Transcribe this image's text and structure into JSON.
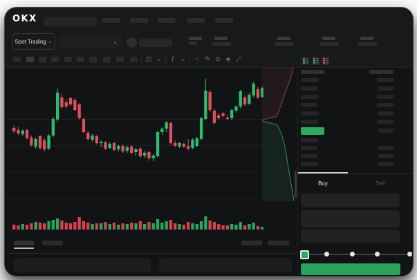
{
  "header": {
    "logo": "OKX",
    "nav_placeholder_count": 5
  },
  "trading_bar": {
    "market_selector": "Spot Trading",
    "chevron": "⌄",
    "stat_group_positions": [
      300,
      391,
      456,
      511
    ]
  },
  "chart_toolbar": {
    "timeframe_button_count": 10,
    "active_timeframe_index": 1,
    "icons": [
      {
        "name": "chart-type-icon",
        "glyph": "◫",
        "divider_before": true
      },
      {
        "name": "chevron-down-icon",
        "glyph": "⌄",
        "divider_before": false
      },
      {
        "name": "indicators-icon",
        "glyph": "ƒ",
        "divider_before": true
      },
      {
        "name": "chevron-down-icon",
        "glyph": "⌄",
        "divider_before": false
      },
      {
        "name": "line-tool-icon",
        "glyph": "~",
        "divider_before": true
      },
      {
        "name": "draw-tool-icon",
        "glyph": "✎",
        "divider_before": false
      },
      {
        "name": "screenshot-icon",
        "glyph": "⊙",
        "divider_before": false
      },
      {
        "name": "settings-icon",
        "glyph": "◈",
        "divider_before": false
      },
      {
        "name": "fullscreen-icon",
        "glyph": "⤢",
        "divider_before": false
      }
    ]
  },
  "order_book": {
    "view_icons": [
      {
        "name": "orderbook-combined-icon",
        "rows": [
          "red",
          "green",
          "green"
        ]
      },
      {
        "name": "orderbook-bids-icon",
        "rows": [
          "green",
          "green",
          "green"
        ]
      },
      {
        "name": "orderbook-asks-icon",
        "rows": [
          "red",
          "red",
          "red"
        ]
      }
    ],
    "header": {
      "left_w": 34,
      "right_w": 35
    },
    "asks": [
      {
        "l": 26,
        "r": 24
      },
      {
        "l": 25,
        "r": 23
      },
      {
        "l": 26,
        "r": 24
      },
      {
        "l": 24,
        "r": 24
      },
      {
        "l": 26,
        "r": 23
      },
      {
        "l": 25,
        "r": 24
      }
    ],
    "last_price": {
      "w": 34,
      "r": 23
    },
    "bids": [
      {
        "l": 25,
        "r": 0
      },
      {
        "l": 24,
        "r": 22
      },
      {
        "l": 24,
        "r": 22
      },
      {
        "l": 25,
        "r": 22
      }
    ]
  },
  "trade_form": {
    "tabs": {
      "buy": "Buy",
      "sell": "Sell"
    },
    "active_tab": "buy",
    "field_count": 3,
    "slider": {
      "stops": 5,
      "active_stop": 0
    },
    "buy_button_label": ""
  },
  "colors": {
    "candle_green": "#2ebd70",
    "candle_red": "#e0505c",
    "volume_green": "#2aa562",
    "volume_red": "#d4434f",
    "last_price_green": "#2fa860",
    "button_green": "#2ba25c",
    "depth_ask_line": "#8f454d",
    "depth_bid_line": "#3d8a72",
    "depth_ask_fill": "rgba(190,70,85,0.10)",
    "depth_bid_fill": "rgba(45,165,115,0.10)",
    "gridline": "#1d1f21"
  },
  "chart_data": {
    "type": "candlestick",
    "title": "",
    "xlabel": "",
    "ylabel": "",
    "note": "Skeleton trading UI: no numeric axis labels are rendered; OHLC values are in relative price units read from candle geometry (higher = higher price).",
    "gridlines_p": [
      157,
      119,
      81,
      43,
      5
    ],
    "p_range": [
      0,
      194
    ],
    "candles": [
      [
        106,
        110,
        99,
        101
      ],
      [
        103,
        107,
        95,
        98
      ],
      [
        97,
        104,
        94,
        102
      ],
      [
        103,
        105,
        89,
        91
      ],
      [
        92,
        95,
        79,
        81
      ],
      [
        79,
        92,
        76,
        90
      ],
      [
        94,
        96,
        74,
        77
      ],
      [
        88,
        91,
        72,
        75
      ],
      [
        76,
        97,
        74,
        95
      ],
      [
        95,
        122,
        93,
        119
      ],
      [
        118,
        164,
        115,
        157
      ],
      [
        150,
        155,
        133,
        136
      ],
      [
        143,
        148,
        134,
        137
      ],
      [
        149,
        151,
        138,
        140
      ],
      [
        146,
        149,
        130,
        132
      ],
      [
        140,
        142,
        118,
        120
      ],
      [
        119,
        121,
        98,
        100
      ],
      [
        99,
        102,
        88,
        90
      ],
      [
        89,
        97,
        86,
        95
      ],
      [
        94,
        96,
        82,
        84
      ],
      [
        84,
        88,
        78,
        86
      ],
      [
        85,
        87,
        74,
        76
      ],
      [
        77,
        85,
        75,
        83
      ],
      [
        84,
        86,
        72,
        74
      ],
      [
        75,
        82,
        72,
        80
      ],
      [
        80,
        82,
        70,
        72
      ],
      [
        73,
        80,
        70,
        78
      ],
      [
        79,
        81,
        68,
        70
      ],
      [
        71,
        77,
        66,
        75
      ],
      [
        76,
        78,
        63,
        65
      ],
      [
        66,
        73,
        62,
        70
      ],
      [
        71,
        73,
        58,
        62
      ],
      [
        62,
        68,
        58,
        66
      ],
      [
        65,
        102,
        63,
        100
      ],
      [
        100,
        107,
        96,
        105
      ],
      [
        105,
        116,
        100,
        114
      ],
      [
        113,
        115,
        82,
        84
      ],
      [
        84,
        88,
        78,
        80
      ],
      [
        79,
        86,
        77,
        84
      ],
      [
        83,
        85,
        77,
        79
      ],
      [
        80,
        90,
        74,
        76
      ],
      [
        77,
        91,
        75,
        89
      ],
      [
        80,
        93,
        78,
        91
      ],
      [
        90,
        122,
        88,
        120
      ],
      [
        119,
        177,
        117,
        160
      ],
      [
        158,
        161,
        129,
        132
      ],
      [
        131,
        134,
        111,
        113
      ],
      [
        124,
        127,
        118,
        120
      ],
      [
        127,
        129,
        121,
        123
      ],
      [
        121,
        125,
        117,
        119
      ],
      [
        120,
        134,
        117,
        132
      ],
      [
        131,
        139,
        128,
        137
      ],
      [
        137,
        161,
        134,
        159
      ],
      [
        150,
        153,
        137,
        140
      ],
      [
        141,
        156,
        139,
        154
      ],
      [
        153,
        172,
        150,
        170
      ],
      [
        162,
        165,
        148,
        150
      ],
      [
        151,
        166,
        149,
        164
      ]
    ],
    "volumes": [
      7,
      6,
      8,
      7,
      9,
      11,
      10,
      9,
      12,
      14,
      16,
      13,
      10,
      9,
      11,
      18,
      12,
      10,
      8,
      9,
      9,
      11,
      8,
      10,
      7,
      9,
      8,
      10,
      9,
      12,
      8,
      11,
      9,
      15,
      10,
      12,
      14,
      9,
      8,
      7,
      11,
      9,
      8,
      12,
      19,
      13,
      11,
      8,
      6,
      6,
      8,
      7,
      11,
      6,
      8,
      10,
      5,
      4
    ],
    "volume_max": 20,
    "depth": {
      "asks": [
        [
          0,
          0.03
        ],
        [
          0.06,
          0.42
        ],
        [
          0.15,
          0.5
        ],
        [
          0.3,
          0.58
        ],
        [
          0.45,
          0.66
        ],
        [
          0.6,
          0.75
        ],
        [
          0.75,
          0.84
        ],
        [
          0.88,
          0.9
        ],
        [
          1,
          0.94
        ]
      ],
      "bids": [
        [
          0,
          0.03
        ],
        [
          0.05,
          0.45
        ],
        [
          0.15,
          0.58
        ],
        [
          0.3,
          0.68
        ],
        [
          0.5,
          0.76
        ],
        [
          0.7,
          0.84
        ],
        [
          0.85,
          0.9
        ],
        [
          1,
          0.96
        ]
      ]
    }
  }
}
